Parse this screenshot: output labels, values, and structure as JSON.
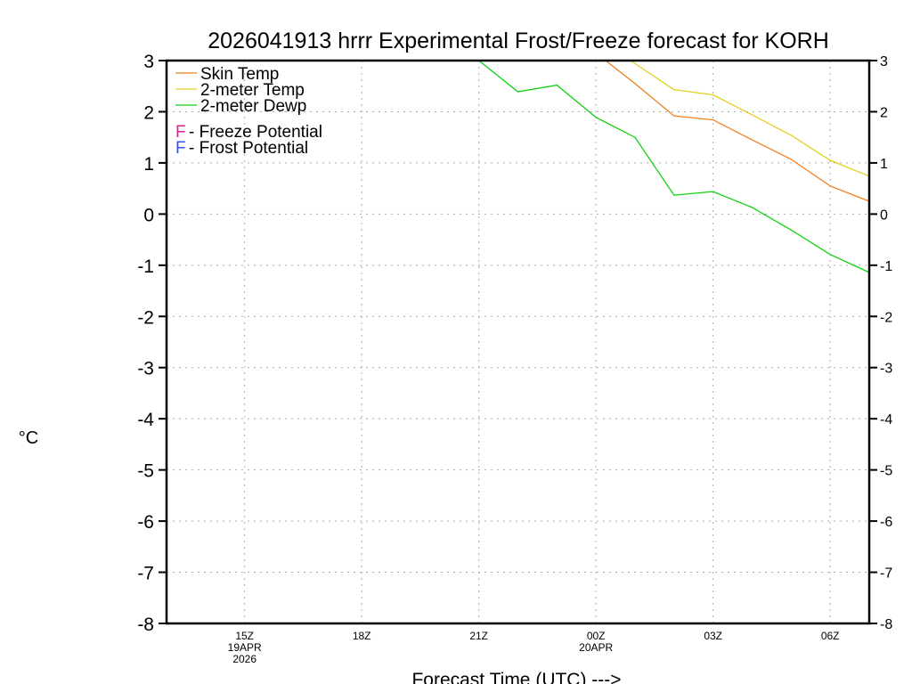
{
  "chart_data": {
    "type": "line",
    "title": "2026041913 hrrr Experimental Frost/Freeze forecast for KORH",
    "xlabel": "Forecast Time (UTC) --->",
    "ylabel": "°C",
    "ylim": [
      -8,
      3
    ],
    "xlim_hours": [
      13,
      31
    ],
    "yticks": [
      3,
      2,
      1,
      0,
      -1,
      -2,
      -3,
      -4,
      -5,
      -6,
      -7,
      -8
    ],
    "xticks": [
      {
        "hour": 15,
        "lines": [
          "15Z",
          "19APR",
          "2026"
        ]
      },
      {
        "hour": 18,
        "lines": [
          "18Z"
        ]
      },
      {
        "hour": 21,
        "lines": [
          "21Z"
        ]
      },
      {
        "hour": 24,
        "lines": [
          "00Z",
          "20APR"
        ]
      },
      {
        "hour": 27,
        "lines": [
          "03Z"
        ]
      },
      {
        "hour": 30,
        "lines": [
          "06Z"
        ]
      }
    ],
    "grid": true,
    "legend_placement": "top-left",
    "series": [
      {
        "name": "Skin Temp",
        "color": "#f08020",
        "x": [
          24,
          25,
          26,
          27,
          28,
          29,
          30,
          31
        ],
        "values": [
          3.15,
          2.55,
          1.92,
          1.84,
          1.45,
          1.07,
          0.55,
          0.25
        ]
      },
      {
        "name": "2-meter Temp",
        "color": "#e0d020",
        "x": [
          24,
          25,
          26,
          27,
          28,
          29,
          30,
          31
        ],
        "values": [
          3.5,
          2.94,
          2.43,
          2.33,
          1.94,
          1.54,
          1.05,
          0.74
        ]
      },
      {
        "name": "2-meter Dewp",
        "color": "#10d010",
        "x": [
          21,
          22,
          23,
          24,
          25,
          26,
          27,
          28,
          29,
          30,
          31
        ],
        "values": [
          3.0,
          2.39,
          2.52,
          1.89,
          1.5,
          0.37,
          0.44,
          0.13,
          -0.31,
          -0.79,
          -1.14
        ]
      }
    ],
    "annotations": [
      {
        "marker": "F",
        "text": " - Freeze Potential",
        "color": "#e0208a"
      },
      {
        "marker": "F",
        "text": " - Frost Potential",
        "color": "#3050f0"
      }
    ]
  }
}
